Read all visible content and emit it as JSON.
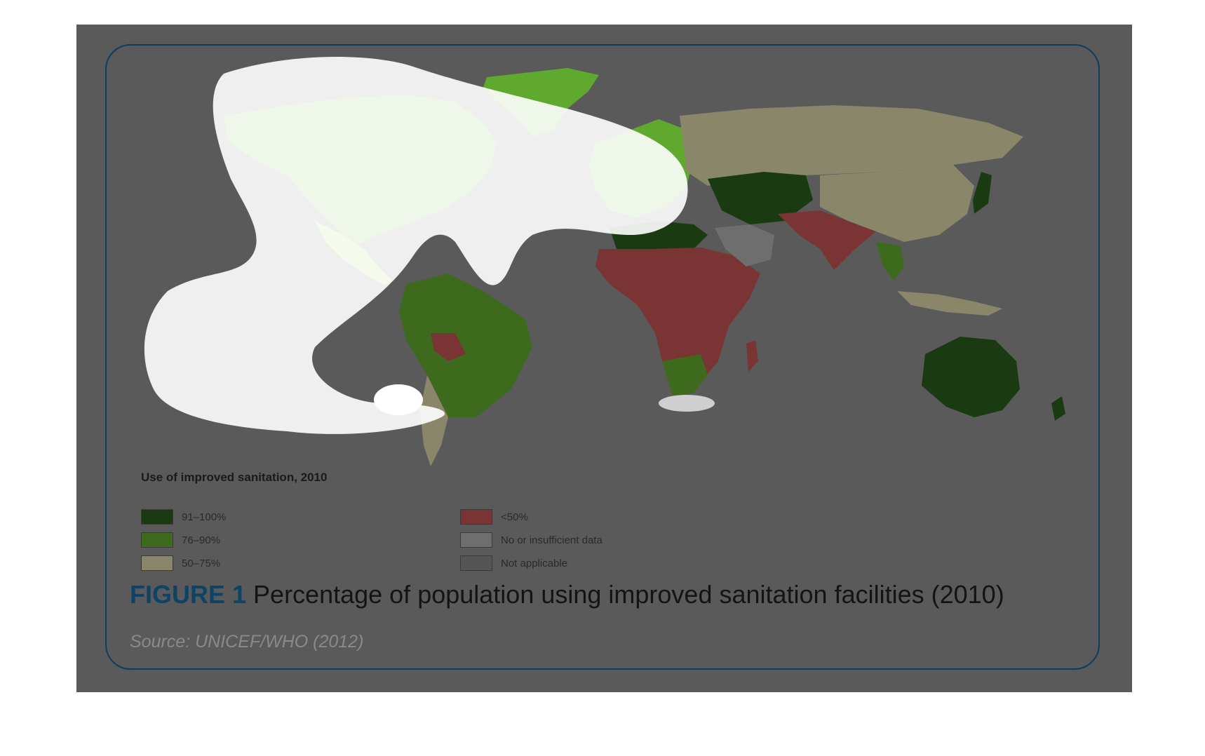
{
  "legend": {
    "title": "Use of improved sanitation, 2010",
    "items": [
      {
        "label": "91–100%",
        "color": "#1a3a12"
      },
      {
        "label": "76–90%",
        "color": "#3e6a1e"
      },
      {
        "label": "50–75%",
        "color": "#8a866a"
      },
      {
        "label": "<50%",
        "color": "#7a3434"
      },
      {
        "label": "No or insufficient data",
        "color": "#6e6e6e"
      },
      {
        "label": "Not applicable",
        "color": "#555555"
      }
    ]
  },
  "figure": {
    "label": "FIGURE 1",
    "title": "Percentage of population using improved sanitation facilities (2010)",
    "source": "Source: UNICEF/WHO (2012)"
  },
  "colors": {
    "background": "#5a5a5a",
    "frame": "#0d3d5c",
    "highlight_green": "#5faa2e",
    "highlight_light_green": "#8fd04a",
    "ocean": "#5a5a5a"
  }
}
